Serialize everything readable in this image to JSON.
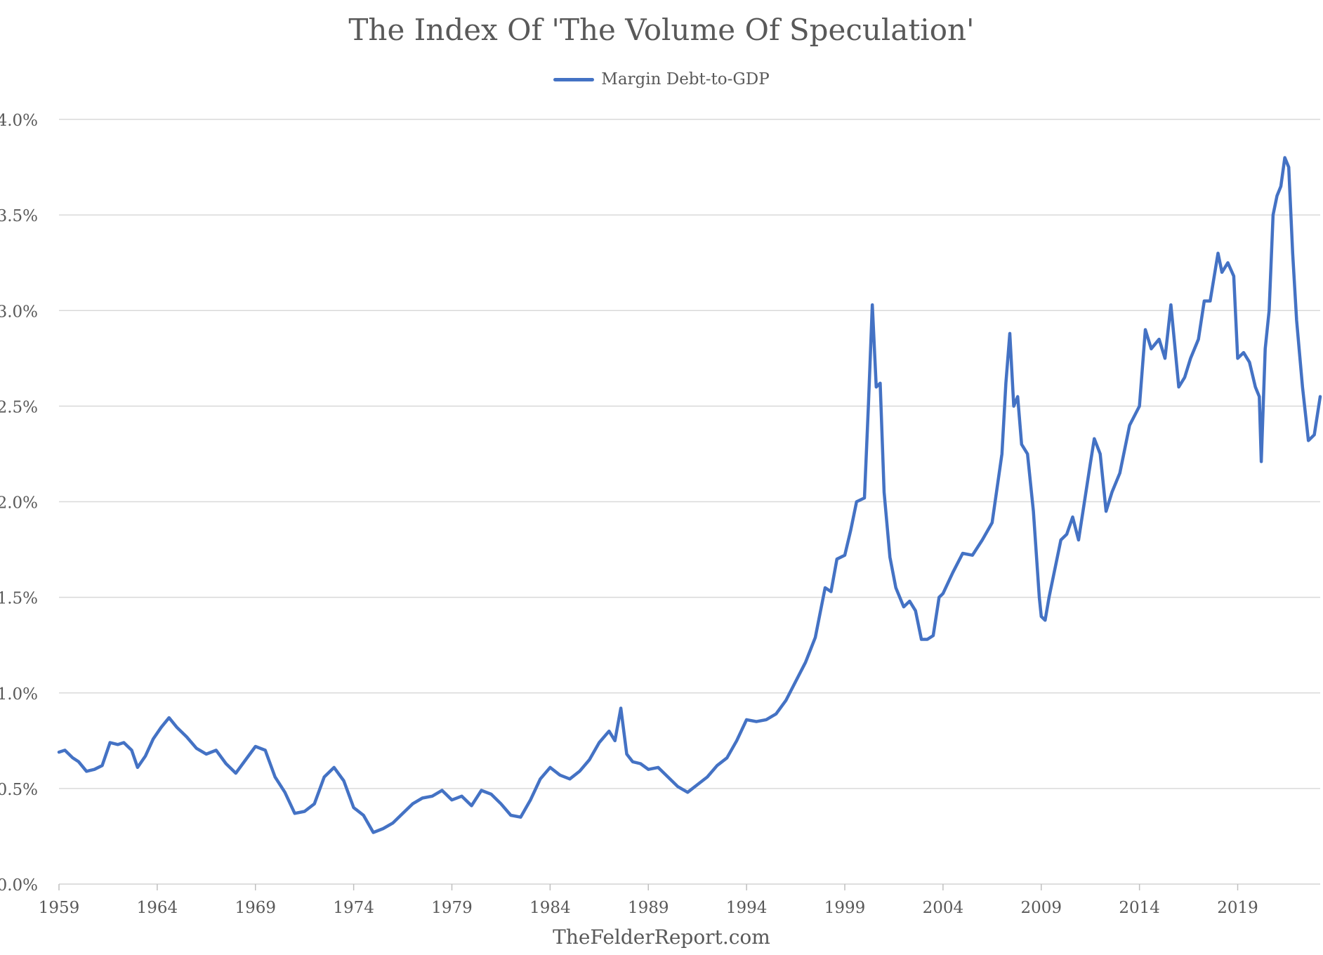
{
  "title": "The Index Of 'The Volume Of Speculation'",
  "legend": {
    "label": "Margin Debt-to-GDP",
    "color": "#4472C4"
  },
  "source": "TheFelderReport.com",
  "colors": {
    "line": "#4472C4",
    "grid": "#d9d9d9",
    "text": "#595959",
    "background": "#ffffff"
  },
  "chart_data": {
    "type": "line",
    "title": "The Index Of 'The Volume Of Speculation'",
    "xlabel": "",
    "ylabel": "",
    "xlim": [
      1959.0,
      2023.2
    ],
    "ylim": [
      0.0,
      4.0
    ],
    "grid": "horizontal",
    "legend_placement": "top-center",
    "x_ticks": [
      1959,
      1964,
      1969,
      1974,
      1979,
      1984,
      1989,
      1994,
      1999,
      2004,
      2009,
      2014,
      2019
    ],
    "x_tick_labels": [
      "1959",
      "1964",
      "1969",
      "1974",
      "1979",
      "1984",
      "1989",
      "1994",
      "1999",
      "2004",
      "2009",
      "2014",
      "2019"
    ],
    "y_ticks": [
      0.0,
      0.5,
      1.0,
      1.5,
      2.0,
      2.5,
      3.0,
      3.5,
      4.0
    ],
    "y_tick_labels": [
      "0.0%",
      "0.5%",
      "1.0%",
      "1.5%",
      "2.0%",
      "2.5%",
      "3.0%",
      "3.5%",
      "4.0%"
    ],
    "series": [
      {
        "name": "Margin Debt-to-GDP",
        "unit": "%",
        "x": [
          1959.0,
          1959.3,
          1959.7,
          1960.0,
          1960.4,
          1960.8,
          1961.2,
          1961.6,
          1962.0,
          1962.3,
          1962.7,
          1963.0,
          1963.4,
          1963.8,
          1964.2,
          1964.6,
          1965.0,
          1965.5,
          1966.0,
          1966.5,
          1967.0,
          1967.5,
          1968.0,
          1968.5,
          1969.0,
          1969.5,
          1970.0,
          1970.5,
          1971.0,
          1971.5,
          1972.0,
          1972.5,
          1973.0,
          1973.5,
          1974.0,
          1974.5,
          1975.0,
          1975.5,
          1976.0,
          1976.5,
          1977.0,
          1977.5,
          1978.0,
          1978.5,
          1979.0,
          1979.5,
          1980.0,
          1980.5,
          1981.0,
          1981.5,
          1982.0,
          1982.5,
          1983.0,
          1983.5,
          1984.0,
          1984.5,
          1985.0,
          1985.5,
          1986.0,
          1986.5,
          1987.0,
          1987.3,
          1987.6,
          1987.9,
          1988.2,
          1988.6,
          1989.0,
          1989.5,
          1990.0,
          1990.5,
          1991.0,
          1991.5,
          1992.0,
          1992.5,
          1993.0,
          1993.5,
          1994.0,
          1994.5,
          1995.0,
          1995.5,
          1996.0,
          1996.5,
          1997.0,
          1997.5,
          1998.0,
          1998.3,
          1998.6,
          1999.0,
          1999.3,
          1999.6,
          2000.0,
          2000.2,
          2000.4,
          2000.6,
          2000.8,
          2001.0,
          2001.3,
          2001.6,
          2002.0,
          2002.3,
          2002.6,
          2002.9,
          2003.2,
          2003.5,
          2003.8,
          2004.0,
          2004.5,
          2005.0,
          2005.5,
          2006.0,
          2006.5,
          2007.0,
          2007.2,
          2007.4,
          2007.6,
          2007.8,
          2008.0,
          2008.3,
          2008.6,
          2008.9,
          2009.0,
          2009.2,
          2009.4,
          2009.7,
          2010.0,
          2010.3,
          2010.6,
          2010.9,
          2011.2,
          2011.5,
          2011.7,
          2012.0,
          2012.3,
          2012.6,
          2013.0,
          2013.5,
          2014.0,
          2014.3,
          2014.6,
          2015.0,
          2015.3,
          2015.6,
          2016.0,
          2016.3,
          2016.6,
          2017.0,
          2017.3,
          2017.6,
          2018.0,
          2018.2,
          2018.5,
          2018.8,
          2019.0,
          2019.3,
          2019.6,
          2019.9,
          2020.1,
          2020.2,
          2020.4,
          2020.6,
          2020.8,
          2021.0,
          2021.2,
          2021.4,
          2021.6,
          2021.8,
          2022.0,
          2022.3,
          2022.6,
          2022.9,
          2023.2
        ],
        "y": [
          0.69,
          0.7,
          0.66,
          0.64,
          0.59,
          0.6,
          0.62,
          0.74,
          0.73,
          0.74,
          0.7,
          0.61,
          0.67,
          0.76,
          0.82,
          0.87,
          0.82,
          0.77,
          0.71,
          0.68,
          0.7,
          0.63,
          0.58,
          0.65,
          0.72,
          0.7,
          0.56,
          0.48,
          0.37,
          0.38,
          0.42,
          0.56,
          0.61,
          0.54,
          0.4,
          0.36,
          0.27,
          0.29,
          0.32,
          0.37,
          0.42,
          0.45,
          0.46,
          0.49,
          0.44,
          0.46,
          0.41,
          0.49,
          0.47,
          0.42,
          0.36,
          0.35,
          0.44,
          0.55,
          0.61,
          0.57,
          0.55,
          0.59,
          0.65,
          0.74,
          0.8,
          0.75,
          0.92,
          0.68,
          0.64,
          0.63,
          0.6,
          0.61,
          0.56,
          0.51,
          0.48,
          0.52,
          0.56,
          0.62,
          0.66,
          0.75,
          0.86,
          0.85,
          0.86,
          0.89,
          0.96,
          1.06,
          1.16,
          1.29,
          1.55,
          1.53,
          1.7,
          1.72,
          1.85,
          2.0,
          2.02,
          2.5,
          3.03,
          2.6,
          2.62,
          2.05,
          1.71,
          1.55,
          1.45,
          1.48,
          1.43,
          1.28,
          1.28,
          1.3,
          1.5,
          1.52,
          1.63,
          1.73,
          1.72,
          1.8,
          1.89,
          2.25,
          2.62,
          2.88,
          2.5,
          2.55,
          2.3,
          2.25,
          1.95,
          1.5,
          1.4,
          1.38,
          1.5,
          1.65,
          1.8,
          1.83,
          1.92,
          1.8,
          2.0,
          2.2,
          2.33,
          2.25,
          1.95,
          2.05,
          2.15,
          2.4,
          2.5,
          2.9,
          2.8,
          2.85,
          2.75,
          3.03,
          2.6,
          2.65,
          2.75,
          2.85,
          3.05,
          3.05,
          3.3,
          3.2,
          3.25,
          3.18,
          2.75,
          2.78,
          2.73,
          2.6,
          2.55,
          2.21,
          2.8,
          3.0,
          3.5,
          3.6,
          3.65,
          3.8,
          3.75,
          3.3,
          2.95,
          2.6,
          2.32,
          2.35,
          2.55
        ]
      }
    ]
  }
}
